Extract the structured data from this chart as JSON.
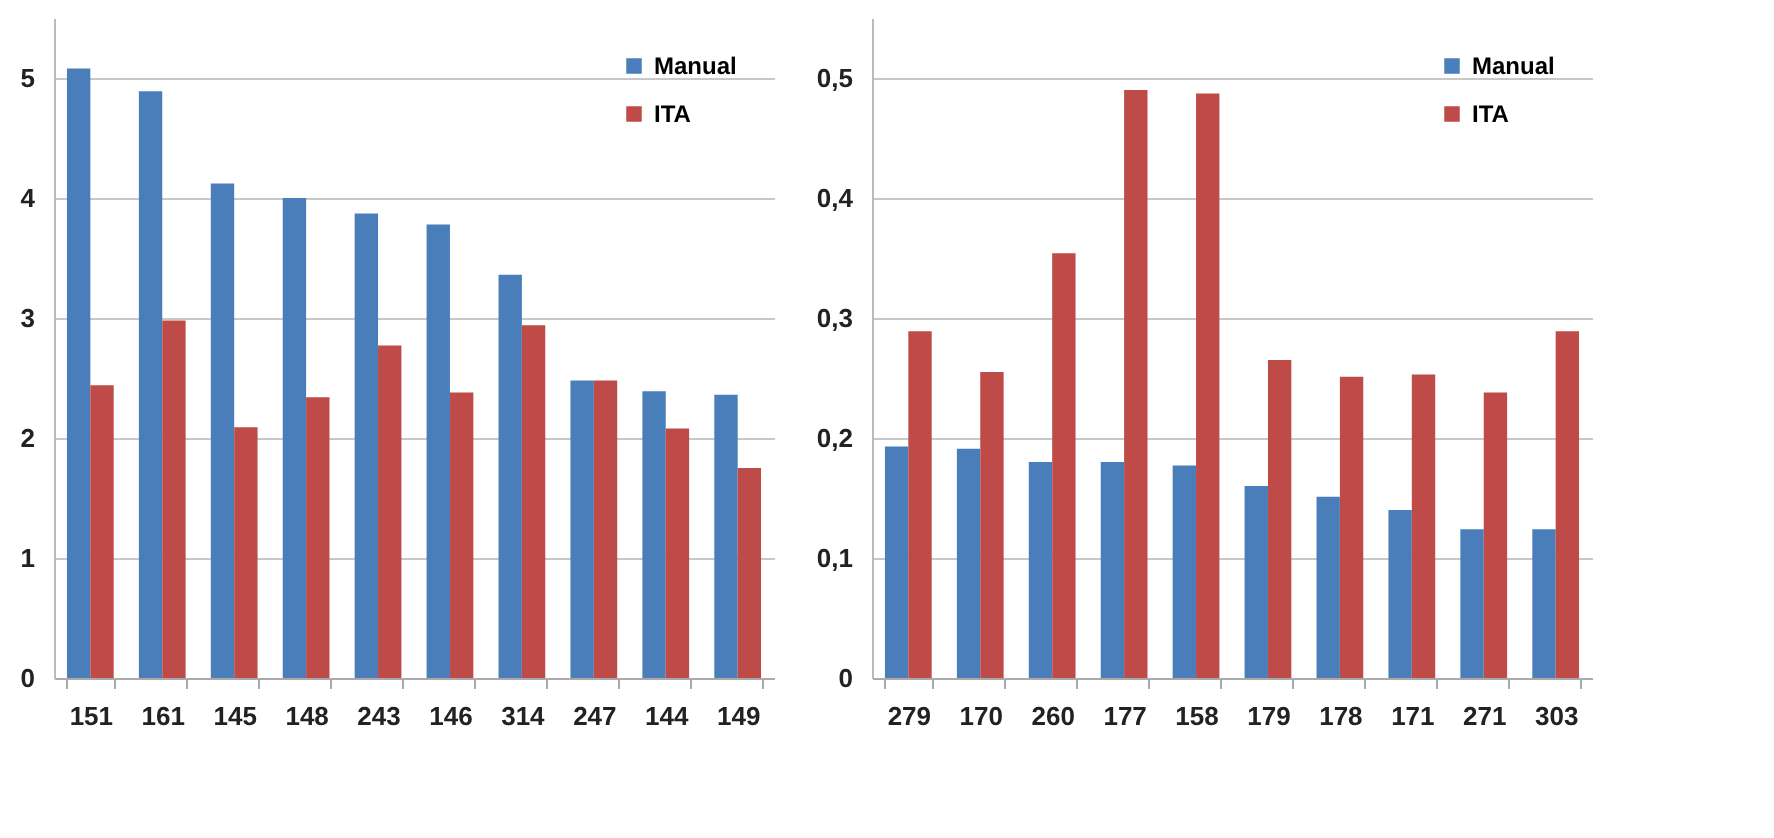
{
  "chart_data": [
    {
      "type": "bar",
      "categories": [
        "151",
        "161",
        "145",
        "148",
        "243",
        "146",
        "314",
        "247",
        "144",
        "149"
      ],
      "series": [
        {
          "name": "Manual",
          "color": "#4a7ebb",
          "values": [
            5.08,
            4.89,
            4.12,
            4.0,
            3.87,
            3.78,
            3.36,
            2.48,
            2.39,
            2.36
          ]
        },
        {
          "name": "ITA",
          "color": "#be4b48",
          "values": [
            2.44,
            2.98,
            2.09,
            2.34,
            2.77,
            2.38,
            2.94,
            2.48,
            2.08,
            1.75
          ]
        }
      ],
      "ylim": [
        0,
        5.5
      ],
      "yticks": [
        0,
        1,
        2,
        3,
        4,
        5
      ],
      "grid": "y",
      "legend": "top right"
    },
    {
      "type": "bar",
      "categories": [
        "279",
        "170",
        "260",
        "177",
        "158",
        "179",
        "178",
        "171",
        "271",
        "303"
      ],
      "series": [
        {
          "name": "Manual",
          "color": "#4a7ebb",
          "values": [
            0.193,
            0.191,
            0.18,
            0.18,
            0.177,
            0.16,
            0.151,
            0.14,
            0.124,
            0.124
          ]
        },
        {
          "name": "ITA",
          "color": "#be4b48",
          "values": [
            0.289,
            0.255,
            0.354,
            0.49,
            0.487,
            0.265,
            0.251,
            0.253,
            0.238,
            0.289
          ]
        }
      ],
      "ylim": [
        0,
        0.55
      ],
      "yticks": [
        0,
        {
          "value": 0.1,
          "label": "0,1"
        },
        {
          "value": 0.2,
          "label": "0,2"
        },
        {
          "value": 0.3,
          "label": "0,3"
        },
        {
          "value": 0.4,
          "label": "0,4"
        },
        {
          "value": 0.5,
          "label": "0,5"
        }
      ],
      "grid": "y",
      "legend": "top right"
    }
  ]
}
